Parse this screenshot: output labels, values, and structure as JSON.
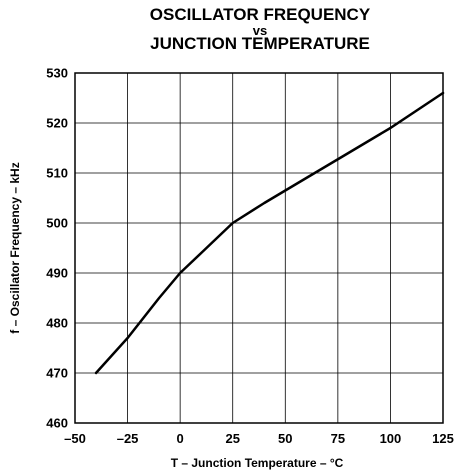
{
  "chart_data": {
    "type": "line",
    "title_lines": [
      "OSCILLATOR FREQUENCY",
      "vs",
      "JUNCTION TEMPERATURE"
    ],
    "xlabel": "T  – Junction Temperature – °C",
    "ylabel": "f – Oscillator Frequency – kHz",
    "xlim": [
      -50,
      125
    ],
    "ylim": [
      460,
      530
    ],
    "xticks": [
      -50,
      -25,
      0,
      25,
      50,
      75,
      100,
      125
    ],
    "yticks": [
      460,
      470,
      480,
      490,
      500,
      510,
      520,
      530
    ],
    "grid": true,
    "series": [
      {
        "x": [
          -40,
          -25,
          -10,
          0,
          10,
          25,
          40,
          60,
          80,
          100,
          125
        ],
        "y": [
          470,
          477,
          485,
          490,
          494,
          500,
          504,
          509,
          514,
          519,
          526
        ]
      }
    ]
  },
  "colors": {
    "line": "#000000",
    "grid": "#000000",
    "background": "#ffffff"
  }
}
